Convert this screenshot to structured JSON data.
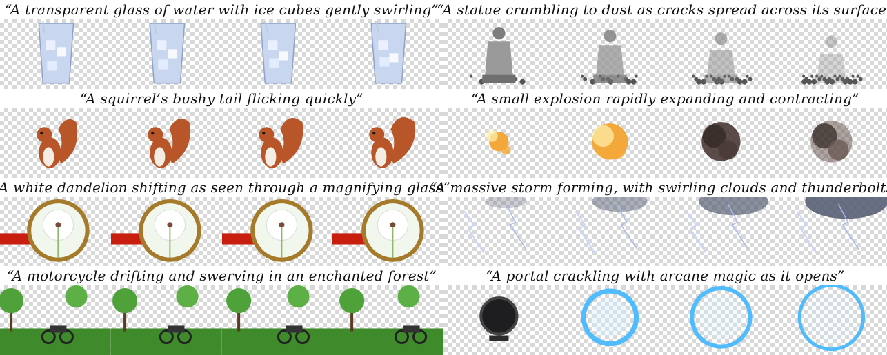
{
  "panels": [
    {
      "caption": "“A transparent glass of water with ice cubes gently swirling”",
      "subject": "glass-of-water",
      "frames": 4
    },
    {
      "caption": "“A statue crumbling to dust as cracks spread across its surface”",
      "subject": "statue",
      "frames": 4
    },
    {
      "caption": "“A squirrel’s bushy tail flicking quickly”",
      "subject": "squirrel",
      "frames": 4
    },
    {
      "caption": "“A small explosion rapidly expanding and contracting”",
      "subject": "explosion",
      "frames": 4
    },
    {
      "caption": "“A white dandelion shifting as seen through a magnifying glass”",
      "subject": "dandelion",
      "frames": 4
    },
    {
      "caption": "“A massive storm forming, with swirling clouds and thunderbolts”",
      "subject": "storm",
      "frames": 4
    },
    {
      "caption": "“A motorcycle drifting and swerving in an enchanted forest”",
      "subject": "motorcycle-forest",
      "frames": 4
    },
    {
      "caption": "“A portal crackling with arcane magic as it opens”",
      "subject": "portal",
      "frames": 4
    }
  ],
  "colors": {
    "checker_dark": "#d8d8d8",
    "checker_light": "#ffffff",
    "water": "#c9d6ef",
    "stone": "#7d7d7d",
    "squirrel_fur": "#b8562a",
    "fire": "#f2a83a",
    "smoke": "#4a3a36",
    "magnifier_handle": "#c81e0f",
    "magnifier_rim": "#a57a2a",
    "storm_cloud": "#5a6175",
    "lightning": "#c9d4ff",
    "forest_green": "#3f8b2c",
    "portal_blue": "#3fb6ff",
    "portal_dark": "#1e1e20"
  }
}
